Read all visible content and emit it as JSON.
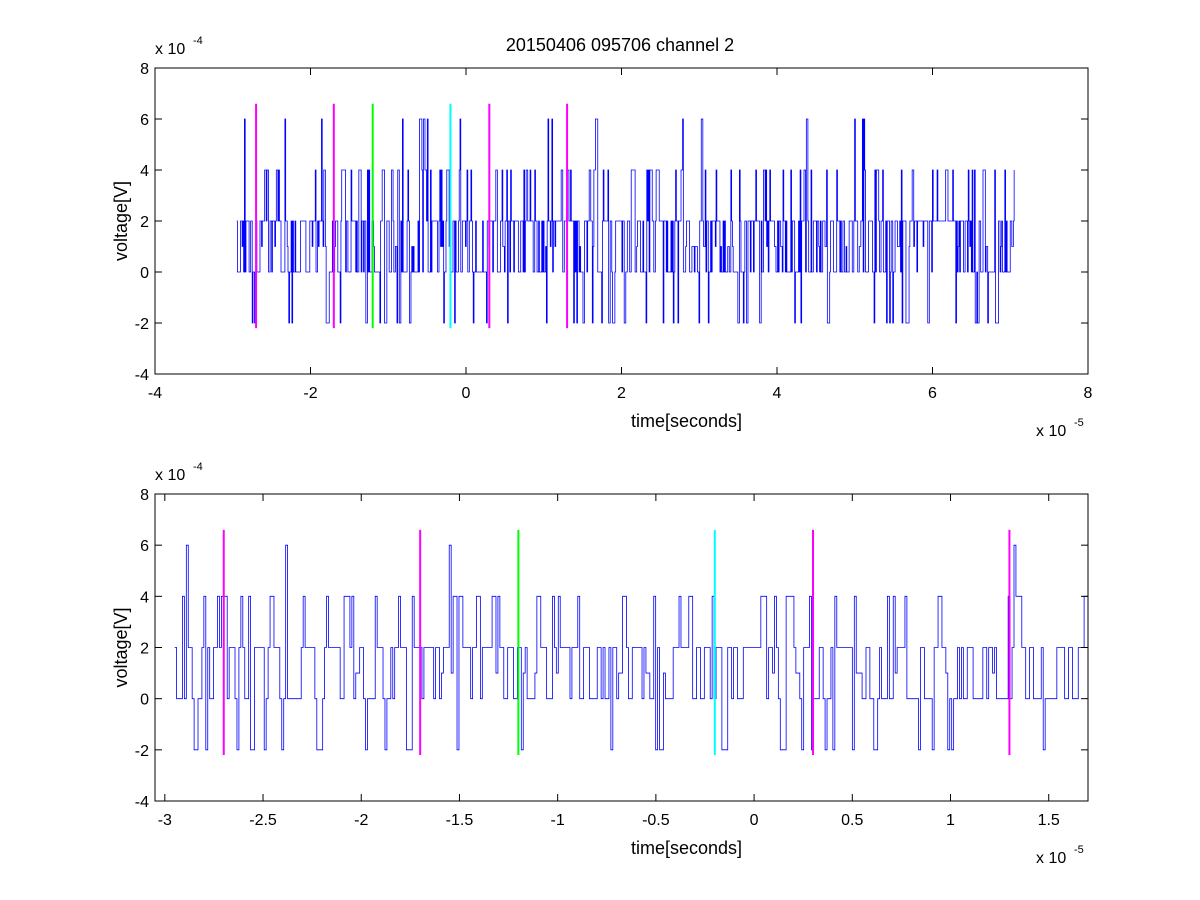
{
  "figure": {
    "title": "20150406 095706 channel 2",
    "background": "#ffffff"
  },
  "chart_data": [
    {
      "type": "line",
      "title": "20150406 095706 channel 2",
      "xlabel": "time[seconds]",
      "ylabel": "voltage[V]",
      "x_exponent_label": "x 10",
      "x_exponent": "-5",
      "y_exponent_label": "x 10",
      "y_exponent": "-4",
      "xlim": [
        -4e-05,
        8e-05
      ],
      "ylim": [
        -0.0004,
        0.0008
      ],
      "xticks": [
        -4,
        -2,
        0,
        2,
        4,
        6,
        8
      ],
      "xtick_labels": [
        "-4",
        "-2",
        "0",
        "2",
        "4",
        "6",
        "8"
      ],
      "yticks": [
        -4,
        -2,
        0,
        2,
        4,
        6,
        8
      ],
      "ytick_labels": [
        "-4",
        "-2",
        "0",
        "2",
        "4",
        "6",
        "8"
      ],
      "grid": false,
      "series": [
        {
          "color": "#0000ff",
          "x_range": [
            -2.95e-05,
            7.05e-05
          ],
          "y_levels": [
            -0.0002,
            0,
            0.0002,
            0.0004,
            0.0006
          ],
          "baseline": 0.0002,
          "samples": 1000
        }
      ],
      "markers": [
        {
          "x": -2.7e-05,
          "color": "#ff00ff",
          "y_range": [
            -0.00022,
            0.00066
          ]
        },
        {
          "x": -1.7e-05,
          "color": "#ff00ff",
          "y_range": [
            -0.00022,
            0.00066
          ]
        },
        {
          "x": -1.2e-05,
          "color": "#00ff00",
          "y_range": [
            -0.00022,
            0.00066
          ]
        },
        {
          "x": -2e-06,
          "color": "#00ffff",
          "y_range": [
            -0.00022,
            0.00066
          ]
        },
        {
          "x": 3e-06,
          "color": "#ff00ff",
          "y_range": [
            -0.00022,
            0.00066
          ]
        },
        {
          "x": 1.3e-05,
          "color": "#ff00ff",
          "y_range": [
            -0.00022,
            0.00066
          ]
        }
      ]
    },
    {
      "type": "line",
      "title": "",
      "xlabel": "time[seconds]",
      "ylabel": "voltage[V]",
      "x_exponent_label": "x 10",
      "x_exponent": "-5",
      "y_exponent_label": "x 10",
      "y_exponent": "-4",
      "xlim": [
        -3.05e-05,
        1.7e-05
      ],
      "ylim": [
        -0.0004,
        0.0008
      ],
      "xticks": [
        -3,
        -2.5,
        -2,
        -1.5,
        -1,
        -0.5,
        0,
        0.5,
        1,
        1.5
      ],
      "xtick_labels": [
        "-3",
        "-2.5",
        "-2",
        "-1.5",
        "-1",
        "-0.5",
        "0",
        "0.5",
        "1",
        "1.5"
      ],
      "yticks": [
        -4,
        -2,
        0,
        2,
        4,
        6,
        8
      ],
      "ytick_labels": [
        "-4",
        "-2",
        "0",
        "2",
        "4",
        "6",
        "8"
      ],
      "grid": false,
      "series": [
        {
          "color": "#0000ff",
          "x_range": [
            -2.95e-05,
            1.7e-05
          ],
          "y_levels": [
            -0.0002,
            0,
            0.0002,
            0.0004,
            0.0006
          ],
          "baseline": 0.0002,
          "samples": 470
        }
      ],
      "markers": [
        {
          "x": -2.7e-05,
          "color": "#ff00ff",
          "y_range": [
            -0.00022,
            0.00066
          ]
        },
        {
          "x": -1.7e-05,
          "color": "#ff00ff",
          "y_range": [
            -0.00022,
            0.00066
          ]
        },
        {
          "x": -1.2e-05,
          "color": "#00ff00",
          "y_range": [
            -0.00022,
            0.00066
          ]
        },
        {
          "x": -2e-06,
          "color": "#00ffff",
          "y_range": [
            -0.00022,
            0.00066
          ]
        },
        {
          "x": 3e-06,
          "color": "#ff00ff",
          "y_range": [
            -0.00022,
            0.00066
          ]
        },
        {
          "x": 1.3e-05,
          "color": "#ff00ff",
          "y_range": [
            -0.00022,
            0.00066
          ]
        }
      ]
    }
  ]
}
